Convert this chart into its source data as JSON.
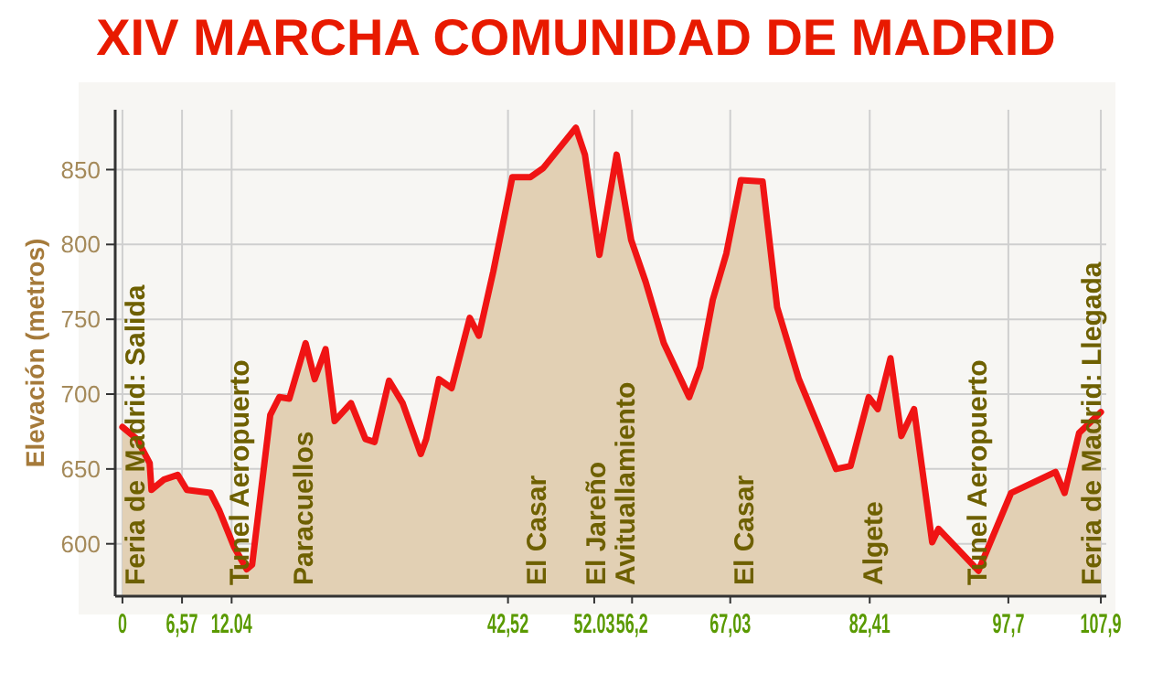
{
  "chart_data": {
    "type": "area",
    "title": "XIV MARCHA COMUNIDAD DE MADRID",
    "ylabel": "Elevación (metros)",
    "x": [
      0,
      1.6,
      3.0,
      3.2,
      4.6,
      6.1,
      7.1,
      9.7,
      10.7,
      12.3,
      13.7,
      14.3,
      16.3,
      17.3,
      18.4,
      20.2,
      21.2,
      22.4,
      23.4,
      25.2,
      26.8,
      27.8,
      29.4,
      30.9,
      32.9,
      33.5,
      34.9,
      36.3,
      38.3,
      39.3,
      40.9,
      43.0,
      45.0,
      46.4,
      50.0,
      51.0,
      52.6,
      54.5,
      56.1,
      57.7,
      59.7,
      62.5,
      63.7,
      65.1,
      66.6,
      68.2,
      70.6,
      72.2,
      74.6,
      78.7,
      80.3,
      82.3,
      83.3,
      84.7,
      85.9,
      87.3,
      89.3,
      90.0,
      94.4,
      98.0,
      102.9,
      103.9,
      105.5,
      107.9
    ],
    "series": [
      {
        "color": "#f01414",
        "values": [
          678,
          670,
          654,
          636,
          643,
          646,
          636,
          634,
          622,
          598,
          583,
          586,
          686,
          698,
          697,
          734,
          710,
          730,
          682,
          694,
          670,
          668,
          709,
          694,
          660,
          670,
          710,
          704,
          751,
          739,
          782,
          845,
          845,
          851,
          878,
          860,
          793,
          860,
          803,
          775,
          734,
          698,
          718,
          763,
          794,
          843,
          842,
          758,
          710,
          650,
          652,
          698,
          690,
          724,
          672,
          690,
          601,
          610,
          582,
          634,
          648,
          634,
          674,
          688
        ]
      }
    ],
    "xlim": [
      -0.8,
      108.5
    ],
    "ylim": [
      565,
      890
    ],
    "xticks": [
      {
        "value": 0,
        "label": "0"
      },
      {
        "value": 6.57,
        "label": "6,57"
      },
      {
        "value": 12.04,
        "label": "12.04"
      },
      {
        "value": 42.52,
        "label": "42,52"
      },
      {
        "value": 52.03,
        "label": "52.03"
      },
      {
        "value": 56.2,
        "label": "56,2"
      },
      {
        "value": 67.03,
        "label": "67,03"
      },
      {
        "value": 82.41,
        "label": "82,41"
      },
      {
        "value": 97.7,
        "label": "97,7"
      },
      {
        "value": 107.9,
        "label": "107,9"
      }
    ],
    "yticks": [
      600,
      650,
      700,
      750,
      800,
      850
    ],
    "grid": true,
    "annotations": [
      "Feria de Madrid: Salida",
      "Tunel Aeropuerto",
      "Paracuellos",
      "El Casar",
      "El Jareño",
      "Avituallamiento",
      "El Casar",
      "Algete",
      "Tunel Aeropuerto",
      "Feria de Madrid: Llegada"
    ]
  }
}
